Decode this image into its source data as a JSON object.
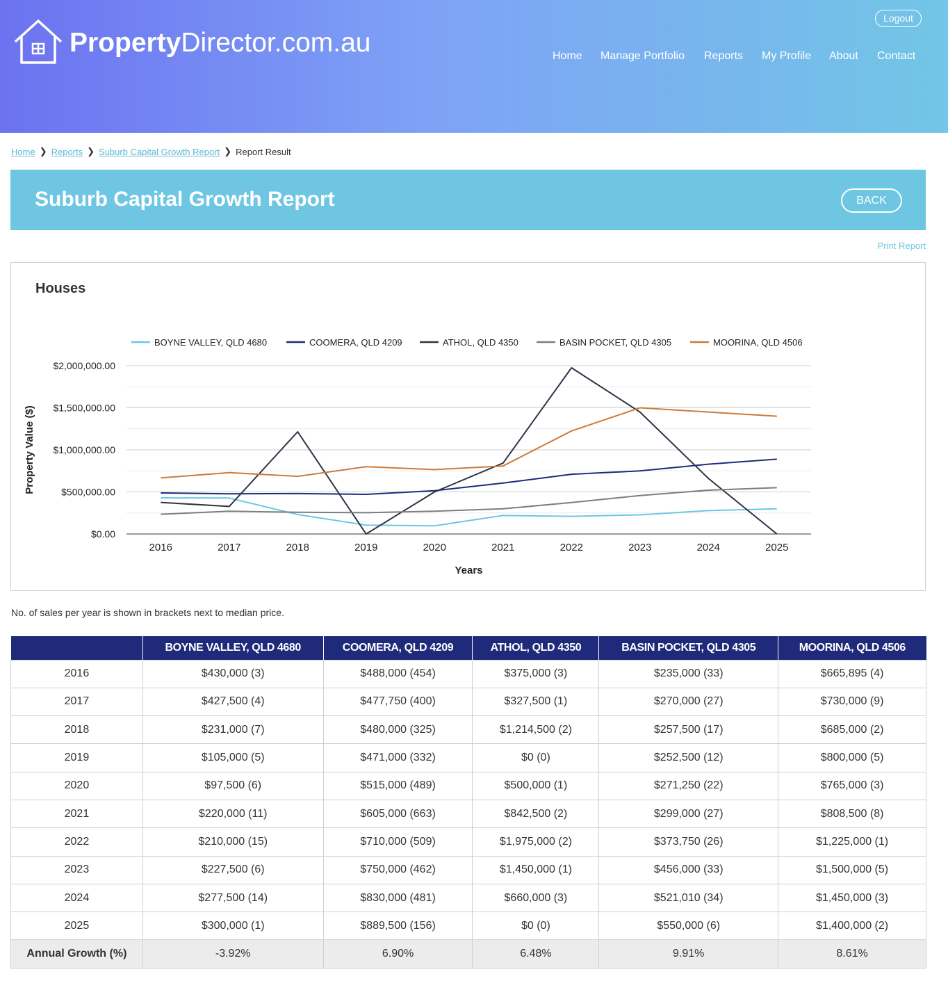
{
  "brand": {
    "name_bold": "Property",
    "name_rest": "Director.com.au"
  },
  "header": {
    "logout_label": "Logout",
    "nav": [
      "Home",
      "Manage Portfolio",
      "Reports",
      "My Profile",
      "About",
      "Contact"
    ]
  },
  "breadcrumb": {
    "items": [
      "Home",
      "Reports",
      "Suburb Capital Growth Report"
    ],
    "current": "Report Result"
  },
  "page": {
    "title": "Suburb Capital Growth Report",
    "back_label": "BACK",
    "print_label": "Print Report",
    "section_title": "Houses",
    "note": "No. of sales per year is shown in brackets next to median price."
  },
  "chart_data": {
    "type": "line",
    "title": "",
    "xlabel": "Years",
    "ylabel": "Property Value ($)",
    "ylim": [
      0,
      2000000
    ],
    "yticks": [
      "$0.00",
      "$500,000.00",
      "$1,000,000.00",
      "$1,500,000.00",
      "$2,000,000.00"
    ],
    "grid": true,
    "legend_position": "top",
    "x": [
      "2016",
      "2017",
      "2018",
      "2019",
      "2020",
      "2021",
      "2022",
      "2023",
      "2024",
      "2025"
    ],
    "series": [
      {
        "name": "BOYNE VALLEY, QLD 4680",
        "color": "#6ec6e2",
        "values": [
          430000,
          427500,
          231000,
          105000,
          97500,
          220000,
          210000,
          227500,
          277500,
          300000
        ]
      },
      {
        "name": "COOMERA, QLD 4209",
        "color": "#1f2a7a",
        "values": [
          488000,
          477750,
          480000,
          471000,
          515000,
          605000,
          710000,
          750000,
          830000,
          889500
        ]
      },
      {
        "name": "ATHOL, QLD 4350",
        "color": "#2d3446",
        "values": [
          375000,
          327500,
          1214500,
          0,
          500000,
          842500,
          1975000,
          1450000,
          660000,
          0
        ]
      },
      {
        "name": "BASIN POCKET, QLD 4305",
        "color": "#7a7f7e",
        "values": [
          235000,
          270000,
          257500,
          252500,
          271250,
          299000,
          373750,
          456000,
          521010,
          550000
        ]
      },
      {
        "name": "MOORINA, QLD 4506",
        "color": "#cc7a3a",
        "values": [
          665895,
          730000,
          685000,
          800000,
          765000,
          808500,
          1225000,
          1500000,
          1450000,
          1400000
        ]
      }
    ]
  },
  "table": {
    "headers": [
      "",
      "BOYNE VALLEY, QLD 4680",
      "COOMERA, QLD 4209",
      "ATHOL, QLD 4350",
      "BASIN POCKET, QLD 4305",
      "MOORINA, QLD 4506"
    ],
    "rows": [
      [
        "2016",
        "$430,000 (3)",
        "$488,000 (454)",
        "$375,000 (3)",
        "$235,000 (33)",
        "$665,895 (4)"
      ],
      [
        "2017",
        "$427,500 (4)",
        "$477,750 (400)",
        "$327,500 (1)",
        "$270,000 (27)",
        "$730,000 (9)"
      ],
      [
        "2018",
        "$231,000 (7)",
        "$480,000 (325)",
        "$1,214,500 (2)",
        "$257,500 (17)",
        "$685,000 (2)"
      ],
      [
        "2019",
        "$105,000 (5)",
        "$471,000 (332)",
        "$0 (0)",
        "$252,500 (12)",
        "$800,000 (5)"
      ],
      [
        "2020",
        "$97,500 (6)",
        "$515,000 (489)",
        "$500,000 (1)",
        "$271,250 (22)",
        "$765,000 (3)"
      ],
      [
        "2021",
        "$220,000 (11)",
        "$605,000 (663)",
        "$842,500 (2)",
        "$299,000 (27)",
        "$808,500 (8)"
      ],
      [
        "2022",
        "$210,000 (15)",
        "$710,000 (509)",
        "$1,975,000 (2)",
        "$373,750 (26)",
        "$1,225,000 (1)"
      ],
      [
        "2023",
        "$227,500 (6)",
        "$750,000 (462)",
        "$1,450,000 (1)",
        "$456,000 (33)",
        "$1,500,000 (5)"
      ],
      [
        "2024",
        "$277,500 (14)",
        "$830,000 (481)",
        "$660,000 (3)",
        "$521,010 (34)",
        "$1,450,000 (3)"
      ],
      [
        "2025",
        "$300,000 (1)",
        "$889,500 (156)",
        "$0 (0)",
        "$550,000 (6)",
        "$1,400,000 (2)"
      ]
    ],
    "growth": [
      "Annual Growth (%)",
      "-3.92%",
      "6.90%",
      "6.48%",
      "9.91%",
      "8.61%"
    ]
  }
}
